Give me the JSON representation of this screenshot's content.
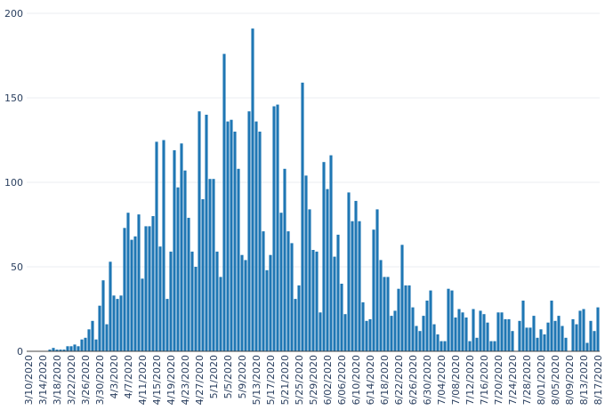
{
  "chart_data": {
    "type": "bar",
    "title": "",
    "xlabel": "",
    "ylabel": "",
    "ylim": [
      0,
      200
    ],
    "yticks": [
      0,
      50,
      100,
      150,
      200
    ],
    "grid": true,
    "bar_color": "#1f77b4",
    "x_tick_labels": [
      "3/10/2020",
      "3/14/2020",
      "3/18/2020",
      "3/22/2020",
      "3/26/2020",
      "3/30/2020",
      "4/3/2020",
      "4/7/2020",
      "4/11/2020",
      "4/15/2020",
      "4/19/2020",
      "4/23/2020",
      "4/27/2020",
      "5/1/2020",
      "5/5/2020",
      "5/9/2020",
      "5/13/2020",
      "5/17/2020",
      "5/21/2020",
      "5/25/2020",
      "5/29/2020",
      "6/02/2020",
      "6/06/2020",
      "6/10/2020",
      "6/14/2020",
      "6/18/2020",
      "6/22/2020",
      "6/26/2020",
      "6/30/2020",
      "7/04/2020",
      "7/08/2020",
      "7/12/2020",
      "7/16/2020",
      "7/20/2020",
      "7/24/2020",
      "7/28/2020",
      "8/01/2020",
      "8/05/2020",
      "8/09/2020",
      "8/13/2020",
      "8/17/2020"
    ],
    "values": [
      0,
      0,
      0,
      0,
      0,
      0,
      1,
      2,
      1,
      1,
      1,
      3,
      3,
      4,
      3,
      7,
      8,
      13,
      18,
      7,
      27,
      42,
      16,
      53,
      33,
      31,
      33,
      73,
      82,
      66,
      68,
      81,
      43,
      74,
      74,
      80,
      124,
      62,
      125,
      31,
      59,
      119,
      97,
      123,
      107,
      79,
      59,
      50,
      142,
      90,
      140,
      102,
      102,
      59,
      44,
      176,
      136,
      137,
      130,
      108,
      57,
      54,
      142,
      191,
      136,
      130,
      71,
      48,
      57,
      145,
      146,
      82,
      108,
      71,
      64,
      31,
      39,
      159,
      104,
      84,
      60,
      59,
      23,
      112,
      96,
      116,
      56,
      69,
      40,
      22,
      94,
      77,
      89,
      77,
      29,
      18,
      19,
      72,
      84,
      54,
      44,
      44,
      21,
      24,
      37,
      63,
      39,
      39,
      26,
      15,
      12,
      21,
      30,
      36,
      16,
      10,
      6,
      6,
      37,
      36,
      20,
      25,
      23,
      20,
      6,
      25,
      8,
      24,
      22,
      17,
      6,
      6,
      23,
      23,
      19,
      19,
      12,
      0,
      18,
      30,
      14,
      14,
      21,
      8,
      13,
      10,
      17,
      30,
      18,
      21,
      15,
      8,
      0,
      19,
      16,
      24,
      25,
      5,
      18,
      12,
      26
    ]
  }
}
